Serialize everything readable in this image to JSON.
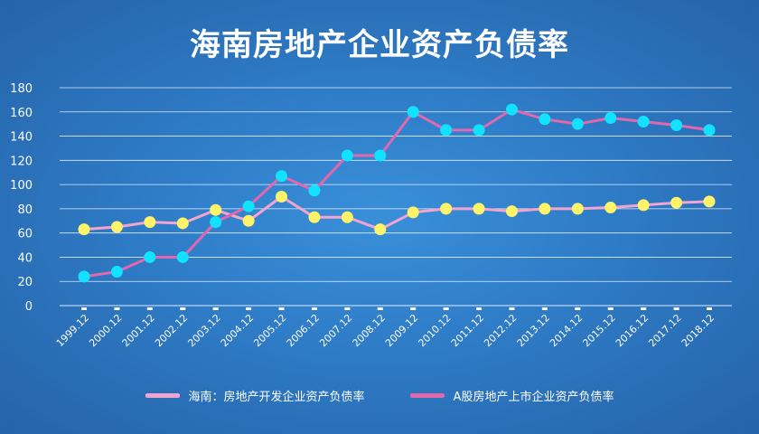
{
  "chart_data": {
    "type": "line",
    "title": "海南房地产企业资产负债率",
    "categories": [
      "1999.12",
      "2000.12",
      "2001.12",
      "2002.12",
      "2003.12",
      "2004.12",
      "2005.12",
      "2006.12",
      "2007.12",
      "2008.12",
      "2009.12",
      "2010.12",
      "2011.12",
      "2012.12",
      "2013.12",
      "2014.12",
      "2015.12",
      "2016.12",
      "2017.12",
      "2018.12"
    ],
    "ylim": [
      0,
      180
    ],
    "yticks": [
      0,
      20,
      40,
      60,
      80,
      100,
      120,
      140,
      160,
      180
    ],
    "grid": true,
    "legend_position": "bottom",
    "series": [
      {
        "name": "海南：房地产开发企业资产负债率",
        "line_color": "#f3a5cf",
        "marker_color": "#fff36a",
        "values": [
          63,
          65,
          69,
          68,
          79,
          70,
          90,
          73,
          73,
          63,
          77,
          80,
          80,
          78,
          80,
          80,
          81,
          83,
          85,
          86
        ]
      },
      {
        "name": "A股房地产上市企业资产负债率",
        "line_color": "#e268ad",
        "marker_color": "#11e2ff",
        "values": [
          24,
          28,
          40,
          40,
          69,
          82,
          107,
          95,
          124,
          124,
          160,
          145,
          145,
          162,
          154,
          150,
          155,
          152,
          149,
          145
        ]
      }
    ]
  }
}
